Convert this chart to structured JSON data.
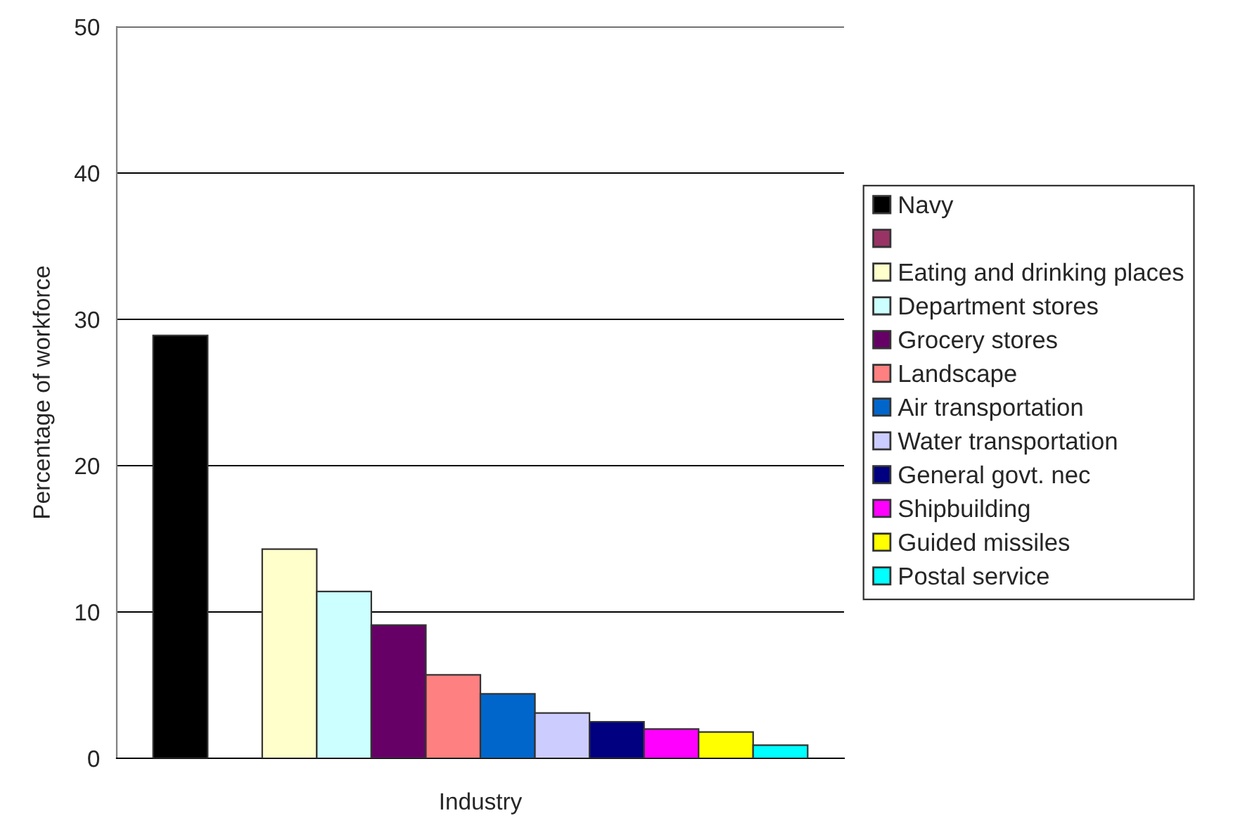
{
  "chart_data": {
    "type": "bar",
    "xlabel": "Industry",
    "ylabel": "Percentage of workforce",
    "categories": [
      null
    ],
    "series": [
      {
        "name": "Navy",
        "color": "#000000",
        "values": [
          28.9
        ]
      },
      {
        "color": "#993366",
        "values": [
          null
        ]
      },
      {
        "name": "Eating and drinking places",
        "color": "#ffffcc",
        "values": [
          14.3
        ]
      },
      {
        "name": "Department stores",
        "color": "#ccffff",
        "values": [
          11.4
        ]
      },
      {
        "name": "Grocery stores",
        "color": "#660066",
        "values": [
          9.1
        ]
      },
      {
        "name": "Landscape",
        "color": "#ff8080",
        "values": [
          5.7
        ]
      },
      {
        "name": "Air transportation",
        "color": "#0066cc",
        "values": [
          4.4
        ]
      },
      {
        "name": "Water transportation",
        "color": "#ccccff",
        "values": [
          3.1
        ]
      },
      {
        "name": "General govt. nec",
        "color": "#000080",
        "values": [
          2.5
        ]
      },
      {
        "name": "Shipbuilding",
        "color": "#ff00ff",
        "values": [
          2.0
        ]
      },
      {
        "name": "Guided missiles",
        "color": "#ffff00",
        "values": [
          1.8
        ]
      },
      {
        "name": "Postal service",
        "color": "#00ffff",
        "values": [
          0.9
        ]
      }
    ],
    "ylim": [
      0,
      50
    ],
    "yticks": [
      0,
      10,
      20,
      30,
      40,
      50
    ],
    "grid": "y",
    "legend": "right"
  }
}
